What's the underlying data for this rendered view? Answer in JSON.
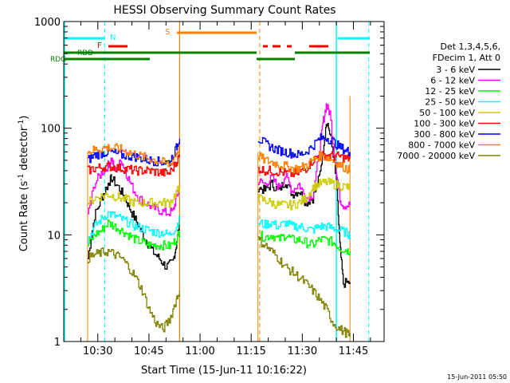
{
  "chart_data": {
    "type": "line",
    "title": "HESSI Observing Summary Count Rates",
    "xlabel": "Start Time (15-Jun-11 10:16:22)",
    "ylabel_main": "Count Rate (s",
    "ylabel_sup1": "-1",
    "ylabel_mid": " detector",
    "ylabel_sup2": "-1",
    "ylabel_end": ")",
    "footer_date": "15-Jun-2011 05:50",
    "yscale": "log",
    "ylim": [
      1,
      1000
    ],
    "xlim_minutes_after_1020": [
      0,
      94
    ],
    "y_tick_labels": [
      "1",
      "10",
      "100",
      "1000"
    ],
    "x_tick_labels": [
      "10:30",
      "10:45",
      "11:00",
      "11:15",
      "11:30",
      "11:45"
    ],
    "x_tick_minutes": [
      10,
      25,
      40,
      55,
      70,
      85
    ],
    "legend": {
      "header1": "Det 1,3,4,5,6,",
      "header2": "FDecim 1, Att 0",
      "entries": [
        {
          "label": "3 - 6 keV",
          "color": "#000000"
        },
        {
          "label": "6 - 12 keV",
          "color": "#ff00ff"
        },
        {
          "label": "12 - 25 keV",
          "color": "#00ff00"
        },
        {
          "label": "25 - 50 keV",
          "color": "#00ffff"
        },
        {
          "label": "50 - 100 keV",
          "color": "#cccc00"
        },
        {
          "label": "100 - 300 keV",
          "color": "#ff0000"
        },
        {
          "label": "300 - 800 keV",
          "color": "#0000ff"
        },
        {
          "label": "800 - 7000 keV",
          "color": "#ff8000"
        },
        {
          "label": "7000 - 20000 keV",
          "color": "#808000"
        }
      ]
    },
    "flags": [
      {
        "label": "N",
        "color": "#00ffff"
      },
      {
        "label": "F",
        "color": "#ff0000"
      },
      {
        "label": "S",
        "color": "#ff8000"
      },
      {
        "label": "RDD",
        "color": "#008000"
      },
      {
        "label": "RDG",
        "color": "#008000"
      }
    ],
    "segments": [
      {
        "start": 7,
        "end": 34
      },
      {
        "start": 57,
        "end": 88
      }
    ],
    "series": [
      {
        "name": "3 - 6 keV",
        "color": "#000000",
        "points": [
          [
            7,
            6
          ],
          [
            9,
            15
          ],
          [
            11,
            22
          ],
          [
            13,
            30
          ],
          [
            14,
            34
          ],
          [
            16,
            28
          ],
          [
            18,
            22
          ],
          [
            20,
            16
          ],
          [
            22,
            12
          ],
          [
            24,
            9
          ],
          [
            26,
            7
          ],
          [
            28,
            6
          ],
          [
            30,
            5
          ],
          [
            32,
            5.5
          ],
          [
            33,
            8
          ],
          [
            34,
            14
          ]
        ],
        "points2": [
          [
            57,
            28
          ],
          [
            59,
            26
          ],
          [
            61,
            30
          ],
          [
            63,
            26
          ],
          [
            65,
            32
          ],
          [
            67,
            24
          ],
          [
            69,
            26
          ],
          [
            71,
            20
          ],
          [
            73,
            22
          ],
          [
            75,
            35
          ],
          [
            76,
            60
          ],
          [
            77,
            110
          ],
          [
            78,
            95
          ],
          [
            80,
            30
          ],
          [
            81,
            8
          ],
          [
            82,
            3.5
          ],
          [
            84,
            3.6
          ]
        ]
      },
      {
        "name": "6 - 12 keV",
        "color": "#ff00ff",
        "points": [
          [
            7,
            15
          ],
          [
            9,
            30
          ],
          [
            11,
            38
          ],
          [
            13,
            45
          ],
          [
            14,
            52
          ],
          [
            15,
            40
          ],
          [
            17,
            50
          ],
          [
            18,
            40
          ],
          [
            20,
            28
          ],
          [
            22,
            22
          ],
          [
            24,
            20
          ],
          [
            26,
            18
          ],
          [
            28,
            17
          ],
          [
            30,
            16
          ],
          [
            32,
            16.5
          ],
          [
            33,
            22
          ],
          [
            34,
            28
          ]
        ],
        "points2": [
          [
            57,
            32
          ],
          [
            59,
            30
          ],
          [
            61,
            34
          ],
          [
            63,
            28
          ],
          [
            65,
            36
          ],
          [
            67,
            26
          ],
          [
            69,
            30
          ],
          [
            71,
            22
          ],
          [
            73,
            24
          ],
          [
            75,
            60
          ],
          [
            76,
            110
          ],
          [
            77,
            165
          ],
          [
            78,
            140
          ],
          [
            80,
            40
          ],
          [
            81,
            22
          ],
          [
            82,
            19
          ],
          [
            84,
            19
          ]
        ]
      },
      {
        "name": "12 - 25 keV",
        "color": "#00ff00",
        "points": [
          [
            7,
            8
          ],
          [
            9,
            10
          ],
          [
            11,
            11
          ],
          [
            13,
            13
          ],
          [
            15,
            12
          ],
          [
            17,
            11
          ],
          [
            19,
            10
          ],
          [
            21,
            9
          ],
          [
            23,
            8.5
          ],
          [
            25,
            8
          ],
          [
            27,
            8
          ],
          [
            29,
            8
          ],
          [
            31,
            7.8
          ],
          [
            33,
            9
          ],
          [
            34,
            11
          ]
        ],
        "points2": [
          [
            57,
            10
          ],
          [
            59,
            9.5
          ],
          [
            61,
            10
          ],
          [
            63,
            9
          ],
          [
            65,
            10
          ],
          [
            67,
            9
          ],
          [
            69,
            9
          ],
          [
            71,
            8.5
          ],
          [
            73,
            8
          ],
          [
            75,
            9
          ],
          [
            77,
            9
          ],
          [
            79,
            8.5
          ],
          [
            81,
            7.5
          ],
          [
            83,
            7.2
          ],
          [
            84,
            7
          ]
        ]
      },
      {
        "name": "25 - 50 keV",
        "color": "#00ffff",
        "points": [
          [
            7,
            9
          ],
          [
            9,
            12
          ],
          [
            11,
            14
          ],
          [
            13,
            16
          ],
          [
            15,
            15
          ],
          [
            17,
            14
          ],
          [
            19,
            13
          ],
          [
            21,
            12
          ],
          [
            23,
            11.5
          ],
          [
            25,
            11
          ],
          [
            27,
            10.5
          ],
          [
            29,
            10.5
          ],
          [
            31,
            10
          ],
          [
            33,
            12
          ],
          [
            34,
            14
          ]
        ],
        "points2": [
          [
            57,
            13
          ],
          [
            59,
            12.5
          ],
          [
            61,
            13
          ],
          [
            63,
            12
          ],
          [
            65,
            13
          ],
          [
            67,
            12
          ],
          [
            69,
            12
          ],
          [
            71,
            11.5
          ],
          [
            73,
            11
          ],
          [
            75,
            12
          ],
          [
            77,
            12
          ],
          [
            79,
            11.5
          ],
          [
            81,
            11
          ],
          [
            83,
            10.5
          ],
          [
            84,
            10
          ]
        ]
      },
      {
        "name": "50 - 100 keV",
        "color": "#cccc00",
        "points": [
          [
            7,
            20
          ],
          [
            9,
            22
          ],
          [
            11,
            23
          ],
          [
            13,
            24
          ],
          [
            15,
            23
          ],
          [
            17,
            22
          ],
          [
            19,
            21
          ],
          [
            21,
            20
          ],
          [
            23,
            20
          ],
          [
            25,
            20
          ],
          [
            27,
            20
          ],
          [
            29,
            20
          ],
          [
            31,
            20
          ],
          [
            33,
            25
          ],
          [
            34,
            28
          ]
        ],
        "points2": [
          [
            57,
            22
          ],
          [
            59,
            21
          ],
          [
            61,
            20
          ],
          [
            63,
            19
          ],
          [
            65,
            19
          ],
          [
            67,
            19
          ],
          [
            69,
            20
          ],
          [
            71,
            22
          ],
          [
            73,
            28
          ],
          [
            75,
            30
          ],
          [
            77,
            31
          ],
          [
            79,
            30
          ],
          [
            81,
            29
          ],
          [
            83,
            28
          ],
          [
            84,
            28
          ]
        ]
      },
      {
        "name": "100 - 300 keV",
        "color": "#ff0000",
        "points": [
          [
            7,
            40
          ],
          [
            9,
            42
          ],
          [
            11,
            43
          ],
          [
            13,
            44
          ],
          [
            15,
            43
          ],
          [
            17,
            42
          ],
          [
            19,
            41
          ],
          [
            21,
            40
          ],
          [
            23,
            40
          ],
          [
            25,
            40
          ],
          [
            27,
            39
          ],
          [
            29,
            38
          ],
          [
            31,
            38
          ],
          [
            33,
            48
          ],
          [
            34,
            55
          ]
        ],
        "points2": [
          [
            57,
            42
          ],
          [
            59,
            40
          ],
          [
            61,
            40
          ],
          [
            63,
            39
          ],
          [
            65,
            38
          ],
          [
            67,
            37
          ],
          [
            69,
            38
          ],
          [
            71,
            42
          ],
          [
            73,
            50
          ],
          [
            75,
            55
          ],
          [
            77,
            56
          ],
          [
            79,
            55
          ],
          [
            81,
            54
          ],
          [
            83,
            52
          ],
          [
            84,
            52
          ]
        ]
      },
      {
        "name": "300 - 800 keV",
        "color": "#0000ff",
        "points": [
          [
            7,
            50
          ],
          [
            9,
            56
          ],
          [
            11,
            58
          ],
          [
            13,
            60
          ],
          [
            15,
            58
          ],
          [
            17,
            56
          ],
          [
            19,
            55
          ],
          [
            21,
            54
          ],
          [
            23,
            52
          ],
          [
            25,
            50
          ],
          [
            27,
            49
          ],
          [
            29,
            48
          ],
          [
            31,
            48
          ],
          [
            33,
            65
          ],
          [
            34,
            80
          ]
        ],
        "points2": [
          [
            57,
            80
          ],
          [
            59,
            72
          ],
          [
            61,
            66
          ],
          [
            63,
            62
          ],
          [
            65,
            60
          ],
          [
            67,
            58
          ],
          [
            69,
            56
          ],
          [
            71,
            60
          ],
          [
            73,
            68
          ],
          [
            75,
            80
          ],
          [
            77,
            82
          ],
          [
            79,
            75
          ],
          [
            81,
            66
          ],
          [
            83,
            62
          ],
          [
            84,
            60
          ]
        ]
      },
      {
        "name": "800 - 7000 keV",
        "color": "#ff8000",
        "points": [
          [
            7,
            60
          ],
          [
            9,
            63
          ],
          [
            11,
            65
          ],
          [
            13,
            66
          ],
          [
            15,
            65
          ],
          [
            17,
            63
          ],
          [
            19,
            60
          ],
          [
            21,
            57
          ],
          [
            23,
            54
          ],
          [
            25,
            52
          ],
          [
            27,
            50
          ],
          [
            29,
            48
          ],
          [
            31,
            45
          ],
          [
            33,
            58
          ],
          [
            34,
            65
          ]
        ],
        "points2": [
          [
            57,
            55
          ],
          [
            59,
            50
          ],
          [
            61,
            48
          ],
          [
            63,
            46
          ],
          [
            65,
            44
          ],
          [
            67,
            42
          ],
          [
            69,
            42
          ],
          [
            71,
            45
          ],
          [
            73,
            50
          ],
          [
            75,
            55
          ],
          [
            77,
            54
          ],
          [
            79,
            50
          ],
          [
            81,
            45
          ],
          [
            83,
            42
          ],
          [
            84,
            40
          ]
        ]
      },
      {
        "name": "7000 - 20000 keV",
        "color": "#808000",
        "points": [
          [
            7,
            6
          ],
          [
            9,
            6.5
          ],
          [
            11,
            6.8
          ],
          [
            13,
            7
          ],
          [
            15,
            6.5
          ],
          [
            17,
            6
          ],
          [
            19,
            5
          ],
          [
            21,
            4
          ],
          [
            23,
            3
          ],
          [
            25,
            2
          ],
          [
            27,
            1.5
          ],
          [
            29,
            1.3
          ],
          [
            31,
            1.6
          ],
          [
            33,
            2.5
          ],
          [
            34,
            3
          ]
        ],
        "points2": [
          [
            57,
            9
          ],
          [
            59,
            8
          ],
          [
            61,
            7
          ],
          [
            63,
            6
          ],
          [
            65,
            5
          ],
          [
            67,
            4.5
          ],
          [
            69,
            4
          ],
          [
            71,
            3.5
          ],
          [
            73,
            3
          ],
          [
            75,
            2.5
          ],
          [
            77,
            2
          ],
          [
            79,
            1.5
          ],
          [
            81,
            1.3
          ],
          [
            83,
            1.2
          ],
          [
            84,
            1.1
          ]
        ]
      }
    ]
  }
}
